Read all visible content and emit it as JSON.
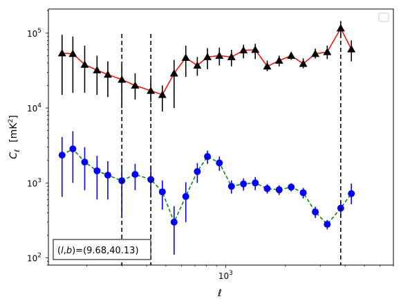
{
  "chart_data": {
    "type": "scatter",
    "xscale": "log",
    "yscale": "log",
    "xlim": [
      128,
      7000
    ],
    "ylim": [
      80,
      210000
    ],
    "xlabel": "ℓ",
    "ylabel_main": "C",
    "ylabel_sub": "ℓ",
    "ylabel_unit_open": "[mK",
    "ylabel_unit_sup": "2",
    "ylabel_unit_close": "]",
    "x_ticks": [
      {
        "value": 1000,
        "base": "10",
        "exp": "3"
      }
    ],
    "y_ticks": [
      {
        "value": 100,
        "base": "10",
        "exp": "2"
      },
      {
        "value": 1000,
        "base": "10",
        "exp": "3"
      },
      {
        "value": 10000,
        "base": "10",
        "exp": "4"
      },
      {
        "value": 100000,
        "base": "10",
        "exp": "5"
      }
    ],
    "vlines": [
      300,
      420,
      3800
    ],
    "annotation": {
      "prefix": "(",
      "l": "l",
      "sep": ",",
      "b": "b",
      "suffix": ")=(9.68,40.13)"
    },
    "legend": {
      "location": "top-right",
      "entries": []
    },
    "series": [
      {
        "marker": "triangle",
        "color": "#000000",
        "line_color": "#ff0000",
        "line_style": "solid",
        "points": [
          {
            "x": 150,
            "y": 54000,
            "lo": 15000,
            "hi": 95000
          },
          {
            "x": 170,
            "y": 53000,
            "lo": 16000,
            "hi": 90000
          },
          {
            "x": 195,
            "y": 38000,
            "lo": 16000,
            "hi": 68000
          },
          {
            "x": 225,
            "y": 32000,
            "lo": 15000,
            "hi": 50000
          },
          {
            "x": 255,
            "y": 28000,
            "lo": 14000,
            "hi": 42000
          },
          {
            "x": 300,
            "y": 24000,
            "lo": 10000,
            "hi": 38000
          },
          {
            "x": 350,
            "y": 20000,
            "lo": 13000,
            "hi": 29000
          },
          {
            "x": 420,
            "y": 17000,
            "lo": 12000,
            "hi": 24000
          },
          {
            "x": 480,
            "y": 15000,
            "lo": 9000,
            "hi": 20000
          },
          {
            "x": 550,
            "y": 29000,
            "lo": 10000,
            "hi": 44000
          },
          {
            "x": 630,
            "y": 47000,
            "lo": 26000,
            "hi": 68000
          },
          {
            "x": 720,
            "y": 37000,
            "lo": 27000,
            "hi": 48000
          },
          {
            "x": 810,
            "y": 48000,
            "lo": 33000,
            "hi": 63000
          },
          {
            "x": 930,
            "y": 50000,
            "lo": 37000,
            "hi": 64000
          },
          {
            "x": 1070,
            "y": 48000,
            "lo": 36000,
            "hi": 60000
          },
          {
            "x": 1230,
            "y": 59000,
            "lo": 46000,
            "hi": 70000
          },
          {
            "x": 1410,
            "y": 60000,
            "lo": 45000,
            "hi": 72000
          },
          {
            "x": 1620,
            "y": 36000,
            "lo": 31000,
            "hi": 43000
          },
          {
            "x": 1860,
            "y": 43000,
            "lo": 36000,
            "hi": 50000
          },
          {
            "x": 2140,
            "y": 50000,
            "lo": 44000,
            "hi": 56000
          },
          {
            "x": 2460,
            "y": 39000,
            "lo": 34000,
            "hi": 46000
          },
          {
            "x": 2830,
            "y": 53000,
            "lo": 46000,
            "hi": 62000
          },
          {
            "x": 3250,
            "y": 56000,
            "lo": 45000,
            "hi": 68000
          },
          {
            "x": 3800,
            "y": 116000,
            "lo": 88000,
            "hi": 145000
          },
          {
            "x": 4300,
            "y": 61000,
            "lo": 42000,
            "hi": 80000
          }
        ]
      },
      {
        "marker": "circle",
        "color": "#0000ff",
        "line_color": "#008000",
        "line_style": "dashed",
        "points": [
          {
            "x": 150,
            "y": 2350,
            "lo": 650,
            "hi": 4100
          },
          {
            "x": 170,
            "y": 2850,
            "lo": 1000,
            "hi": 4900
          },
          {
            "x": 195,
            "y": 1900,
            "lo": 800,
            "hi": 3000
          },
          {
            "x": 225,
            "y": 1450,
            "lo": 600,
            "hi": 2300
          },
          {
            "x": 255,
            "y": 1270,
            "lo": 600,
            "hi": 1950
          },
          {
            "x": 300,
            "y": 1070,
            "lo": 380,
            "hi": 1750
          },
          {
            "x": 350,
            "y": 1300,
            "lo": 800,
            "hi": 1800
          },
          {
            "x": 420,
            "y": 1110,
            "lo": 640,
            "hi": 1580
          },
          {
            "x": 480,
            "y": 760,
            "lo": 440,
            "hi": 1080
          },
          {
            "x": 550,
            "y": 300,
            "lo": 110,
            "hi": 490
          },
          {
            "x": 630,
            "y": 660,
            "lo": 300,
            "hi": 1020
          },
          {
            "x": 720,
            "y": 1420,
            "lo": 1000,
            "hi": 1840
          },
          {
            "x": 810,
            "y": 2250,
            "lo": 1800,
            "hi": 2700
          },
          {
            "x": 930,
            "y": 1850,
            "lo": 1450,
            "hi": 2250
          },
          {
            "x": 1070,
            "y": 900,
            "lo": 720,
            "hi": 1080
          },
          {
            "x": 1230,
            "y": 970,
            "lo": 790,
            "hi": 1150
          },
          {
            "x": 1410,
            "y": 1000,
            "lo": 800,
            "hi": 1200
          },
          {
            "x": 1620,
            "y": 840,
            "lo": 720,
            "hi": 960
          },
          {
            "x": 1860,
            "y": 810,
            "lo": 690,
            "hi": 930
          },
          {
            "x": 2140,
            "y": 880,
            "lo": 770,
            "hi": 990
          },
          {
            "x": 2460,
            "y": 740,
            "lo": 620,
            "hi": 860
          },
          {
            "x": 2830,
            "y": 410,
            "lo": 340,
            "hi": 480
          },
          {
            "x": 3250,
            "y": 280,
            "lo": 240,
            "hi": 320
          },
          {
            "x": 3800,
            "y": 460,
            "lo": 360,
            "hi": 560
          },
          {
            "x": 4300,
            "y": 720,
            "lo": 520,
            "hi": 980
          }
        ]
      }
    ]
  }
}
